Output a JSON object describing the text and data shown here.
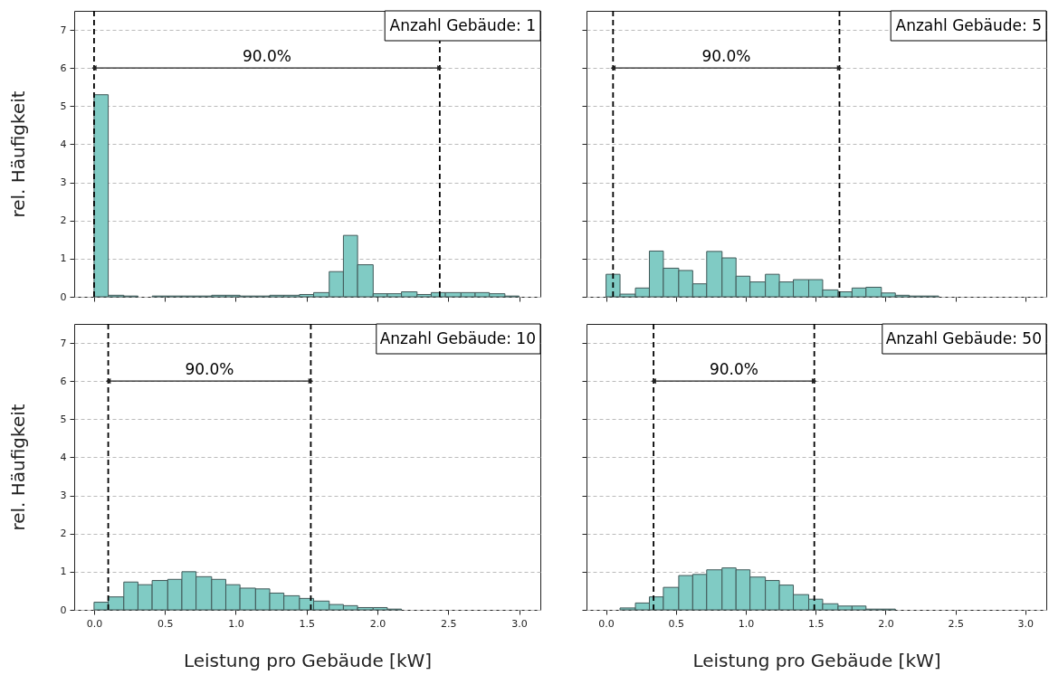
{
  "chart_data": [
    {
      "type": "histogram",
      "ylabel": "rel. Häufigkeit",
      "tick_labels": "y",
      "color": "#80cbc4",
      "bins": [
        0,
        0.1,
        0.21,
        0.31,
        0.41,
        0.52,
        0.62,
        0.72,
        0.83,
        0.93,
        1.03,
        1.14,
        1.24,
        1.34,
        1.45,
        1.55,
        1.66,
        1.76,
        1.86,
        1.97,
        2.07,
        2.17,
        2.28,
        2.38,
        2.48,
        2.59,
        2.69,
        2.79,
        2.9,
        3
      ],
      "values": [
        5.3,
        0.04,
        0.02,
        0,
        0.02,
        0.02,
        0.02,
        0.02,
        0.04,
        0.04,
        0.02,
        0.02,
        0.04,
        0.04,
        0.06,
        0.11,
        0.66,
        1.61,
        0.84,
        0.08,
        0.08,
        0.13,
        0.06,
        0.11,
        0.11,
        0.11,
        0.11,
        0.08,
        0.02
      ],
      "xlim": [
        -0.14,
        3.15
      ],
      "ylim": [
        0,
        7.5
      ],
      "xticks": [
        {
          "value": 0,
          "label": null
        },
        {
          "value": 0.5,
          "label": null
        },
        {
          "value": 1,
          "label": null
        },
        {
          "value": 1.5,
          "label": null
        },
        {
          "value": 2,
          "label": null
        },
        {
          "value": 2.5,
          "label": null
        },
        {
          "value": 3,
          "label": null
        }
      ],
      "yticks": [
        0,
        1,
        2,
        3,
        4,
        5,
        6,
        7
      ],
      "grid": "y",
      "ref_lines": [
        {
          "axis": "x",
          "value": 0,
          "color": "#000000",
          "line_style": "dashed"
        },
        {
          "axis": "x",
          "value": 2.44,
          "color": "#000000",
          "line_style": "dashed"
        }
      ],
      "annotations": [
        "Anzahl Gebäude: 1",
        "90.0%"
      ]
    },
    {
      "type": "histogram",
      "tick_labels": false,
      "color": "#80cbc4",
      "bins": [
        0,
        0.1,
        0.21,
        0.31,
        0.41,
        0.52,
        0.62,
        0.72,
        0.83,
        0.93,
        1.03,
        1.14,
        1.24,
        1.34,
        1.45,
        1.55,
        1.66,
        1.76,
        1.86,
        1.97,
        2.07,
        2.17,
        2.28,
        2.38
      ],
      "values": [
        0.59,
        0.07,
        0.23,
        1.2,
        0.75,
        0.69,
        0.34,
        1.19,
        1.02,
        0.54,
        0.39,
        0.59,
        0.39,
        0.45,
        0.45,
        0.18,
        0.13,
        0.23,
        0.25,
        0.1,
        0.04,
        0.02,
        0.02
      ],
      "xlim": [
        -0.14,
        3.15
      ],
      "ylim": [
        0,
        7.5
      ],
      "xticks": [
        {
          "value": 0,
          "label": null
        },
        {
          "value": 0.5,
          "label": null
        },
        {
          "value": 1,
          "label": null
        },
        {
          "value": 1.5,
          "label": null
        },
        {
          "value": 2,
          "label": null
        },
        {
          "value": 2.5,
          "label": null
        },
        {
          "value": 3,
          "label": null
        }
      ],
      "yticks": [
        0,
        1,
        2,
        3,
        4,
        5,
        6,
        7
      ],
      "grid": "y",
      "ref_lines": [
        {
          "axis": "x",
          "value": 0.05,
          "color": "#000000",
          "line_style": "dashed"
        },
        {
          "axis": "x",
          "value": 1.67,
          "color": "#000000",
          "line_style": "dashed"
        }
      ],
      "annotations": [
        "Anzahl Gebäude: 5",
        "90.0%"
      ]
    },
    {
      "type": "histogram",
      "xlabel": "Leistung pro Gebäude [kW]",
      "ylabel": "rel. Häufigkeit",
      "color": "#80cbc4",
      "bins": [
        0,
        0.1,
        0.21,
        0.31,
        0.41,
        0.52,
        0.62,
        0.72,
        0.83,
        0.93,
        1.03,
        1.14,
        1.24,
        1.34,
        1.45,
        1.55,
        1.66,
        1.76,
        1.86,
        1.97,
        2.07,
        2.17
      ],
      "values": [
        0.2,
        0.34,
        0.73,
        0.66,
        0.77,
        0.8,
        1.0,
        0.87,
        0.8,
        0.66,
        0.57,
        0.55,
        0.44,
        0.37,
        0.3,
        0.23,
        0.14,
        0.11,
        0.06,
        0.06,
        0.02
      ],
      "xlim": [
        -0.14,
        3.15
      ],
      "ylim": [
        0,
        7.5
      ],
      "xticks": [
        {
          "value": 0,
          "label": "0.0"
        },
        {
          "value": 0.5,
          "label": "0.5"
        },
        {
          "value": 1,
          "label": "1.0"
        },
        {
          "value": 1.5,
          "label": "1.5"
        },
        {
          "value": 2,
          "label": "2.0"
        },
        {
          "value": 2.5,
          "label": "2.5"
        },
        {
          "value": 3,
          "label": "3.0"
        }
      ],
      "yticks": [
        0,
        1,
        2,
        3,
        4,
        5,
        6,
        7
      ],
      "grid": "y",
      "ref_lines": [
        {
          "axis": "x",
          "value": 0.1,
          "color": "#000000",
          "line_style": "dashed"
        },
        {
          "axis": "x",
          "value": 1.53,
          "color": "#000000",
          "line_style": "dashed"
        }
      ],
      "annotations": [
        "Anzahl Gebäude: 10",
        "90.0%"
      ]
    },
    {
      "type": "histogram",
      "xlabel": "Leistung pro Gebäude [kW]",
      "tick_labels": "x",
      "color": "#80cbc4",
      "bins": [
        0.1,
        0.21,
        0.31,
        0.41,
        0.52,
        0.62,
        0.72,
        0.83,
        0.93,
        1.03,
        1.14,
        1.24,
        1.34,
        1.45,
        1.55,
        1.66,
        1.76,
        1.86,
        1.97,
        2.07
      ],
      "values": [
        0.05,
        0.18,
        0.34,
        0.59,
        0.9,
        0.93,
        1.05,
        1.1,
        1.05,
        0.86,
        0.77,
        0.65,
        0.4,
        0.28,
        0.16,
        0.1,
        0.1,
        0.02,
        0.02
      ],
      "xlim": [
        -0.14,
        3.15
      ],
      "ylim": [
        0,
        7.5
      ],
      "xticks": [
        {
          "value": 0,
          "label": "0.0"
        },
        {
          "value": 0.5,
          "label": "0.5"
        },
        {
          "value": 1,
          "label": "1.0"
        },
        {
          "value": 1.5,
          "label": "1.5"
        },
        {
          "value": 2,
          "label": "2.0"
        },
        {
          "value": 2.5,
          "label": "2.5"
        },
        {
          "value": 3,
          "label": "3.0"
        }
      ],
      "yticks": [
        0,
        1,
        2,
        3,
        4,
        5,
        6,
        7
      ],
      "grid": "y",
      "ref_lines": [
        {
          "axis": "x",
          "value": 0.34,
          "color": "#000000",
          "line_style": "dashed"
        },
        {
          "axis": "x",
          "value": 1.49,
          "color": "#000000",
          "line_style": "dashed"
        }
      ],
      "annotations": [
        "Anzahl Gebäude: 50",
        "90.0%"
      ]
    }
  ]
}
